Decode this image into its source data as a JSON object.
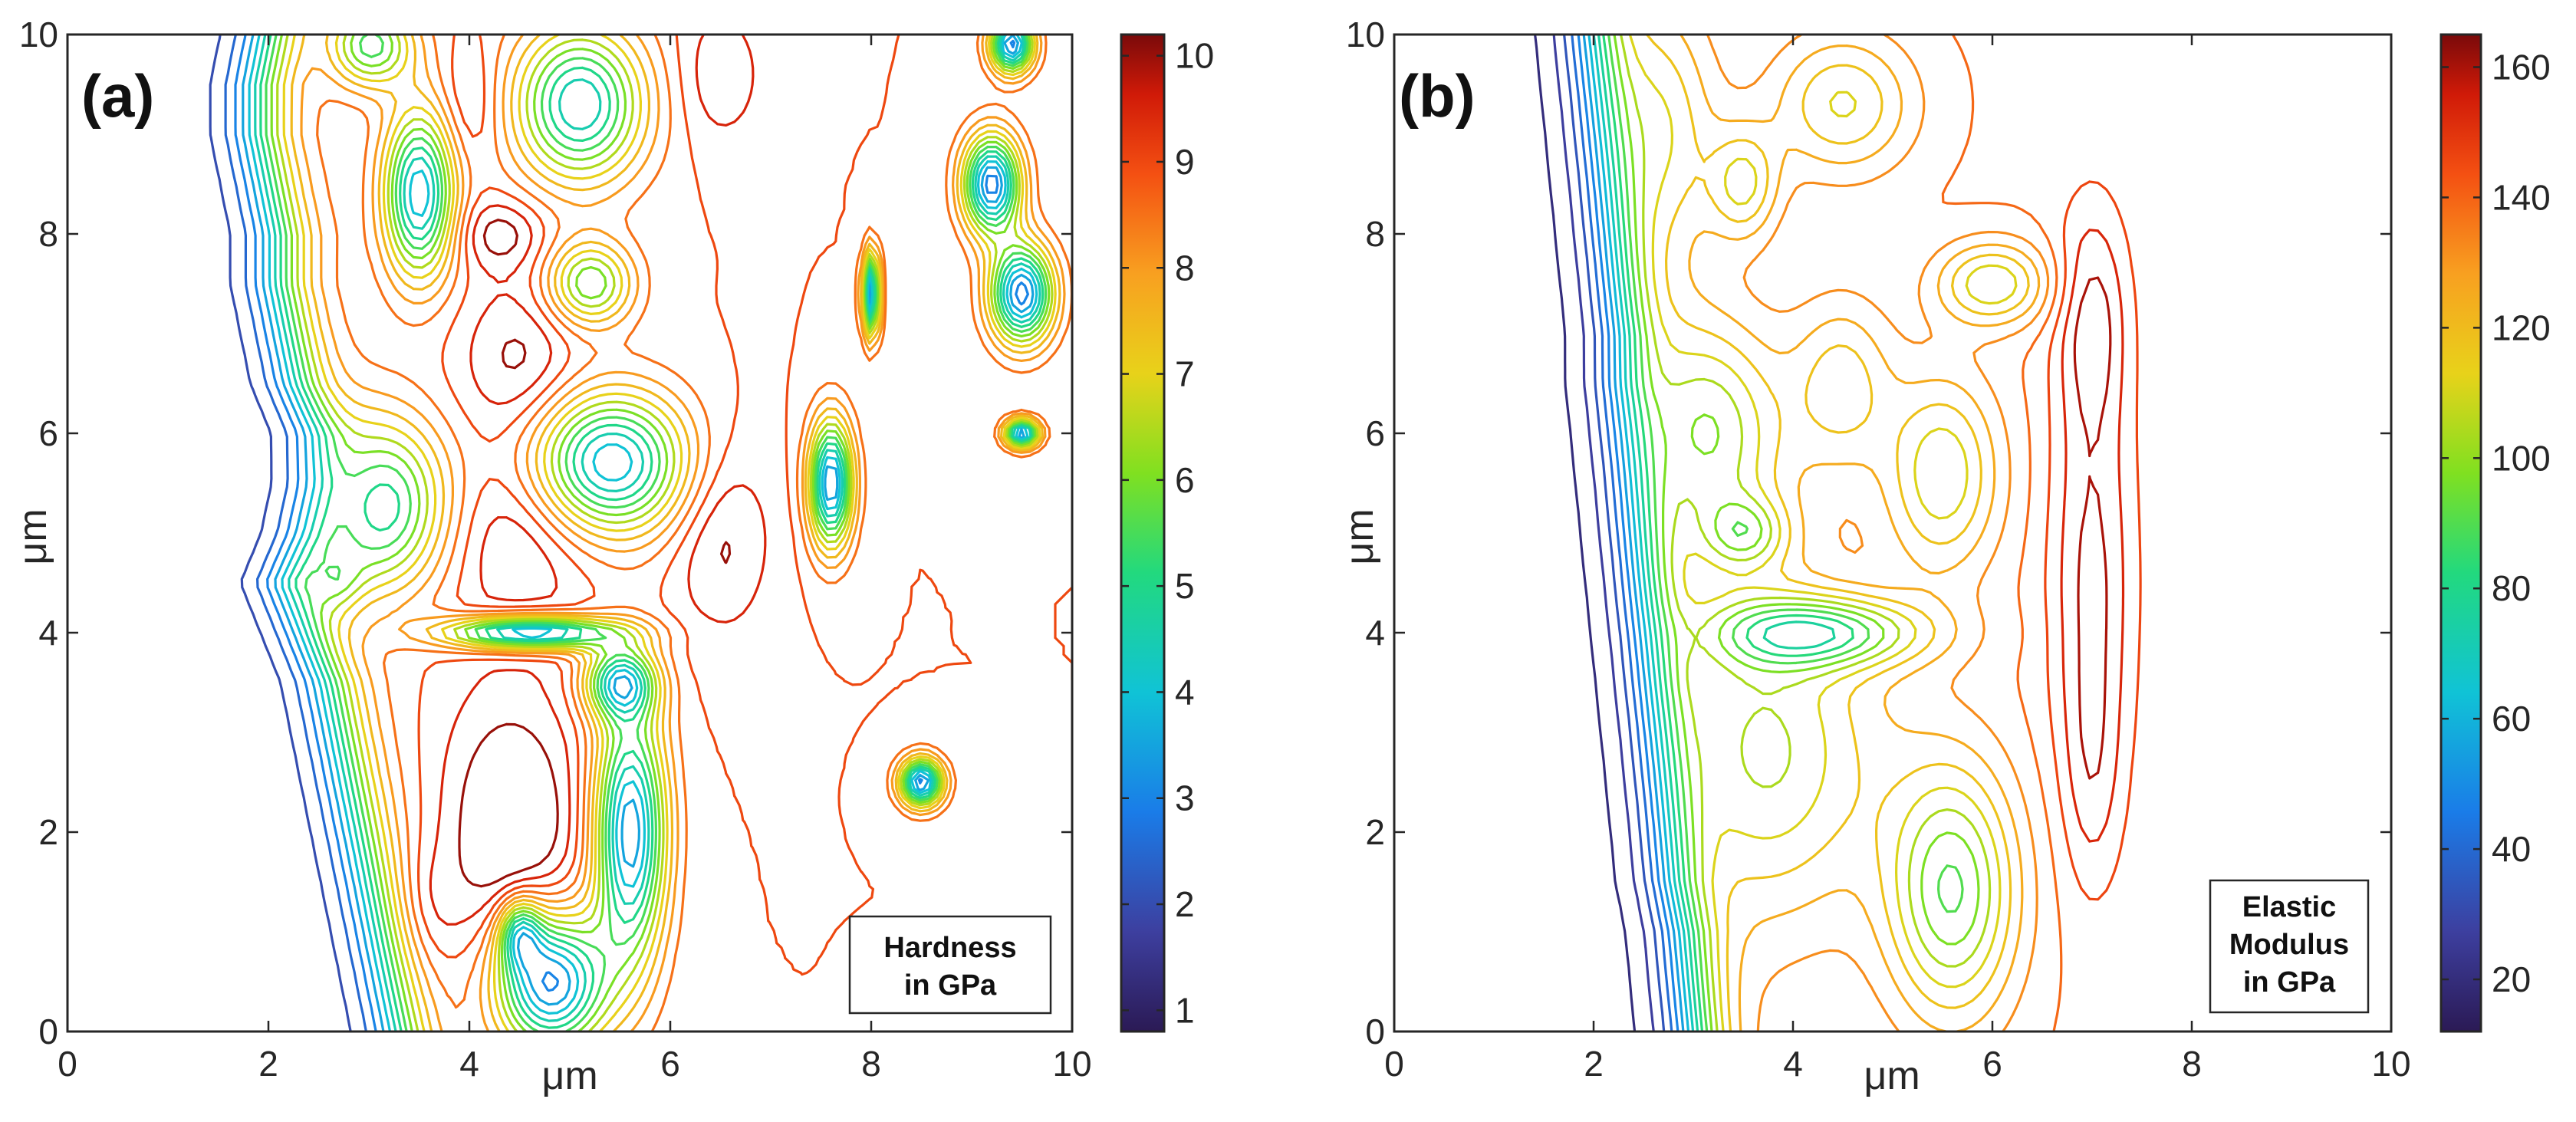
{
  "chart_data": [
    {
      "type": "contour",
      "panel_label": "(a)",
      "xlabel": "μm",
      "ylabel": "μm",
      "xlim": [
        0,
        10
      ],
      "ylim": [
        0,
        10
      ],
      "xticks": [
        "0",
        "2",
        "4",
        "6",
        "8",
        "10"
      ],
      "yticks": [
        "0",
        "2",
        "4",
        "6",
        "8",
        "10"
      ],
      "colorbar": {
        "min": 0.8,
        "max": 10.2,
        "ticks": [
          "1",
          "2",
          "3",
          "4",
          "5",
          "6",
          "7",
          "8",
          "9",
          "10"
        ]
      },
      "annotation": [
        "Hardness",
        "in GPa"
      ],
      "front": {
        "y": [
          0,
          0.5,
          1,
          1.5,
          2,
          2.5,
          3,
          3.5,
          4,
          4.5,
          5,
          5.5,
          6,
          6.5,
          7,
          7.5,
          8,
          8.5,
          9,
          9.5,
          10
        ],
        "x": [
          2.8,
          2.7,
          2.6,
          2.5,
          2.4,
          2.3,
          2.2,
          2.1,
          1.9,
          1.7,
          1.9,
          2.0,
          2.0,
          1.8,
          1.7,
          1.6,
          1.6,
          1.5,
          1.4,
          1.4,
          1.5
        ]
      },
      "plateau_end": 7.2,
      "bulk_value": 9.0,
      "substrate_value": 1.5,
      "levels": [
        1,
        1.5,
        2,
        2.5,
        3,
        3.5,
        4,
        4.5,
        5,
        5.5,
        6,
        6.5,
        7,
        7.5,
        8,
        8.5,
        9,
        9.5,
        10
      ],
      "features": [
        {
          "x": 4.4,
          "y": 2.0,
          "sx": 0.5,
          "sy": 1.0,
          "a": 1.8
        },
        {
          "x": 3.5,
          "y": 1.2,
          "sx": 0.25,
          "sy": 0.45,
          "a": 1.2
        },
        {
          "x": 4.5,
          "y": 5.0,
          "sx": 0.5,
          "sy": 0.6,
          "a": 1.2
        },
        {
          "x": 4.5,
          "y": 6.7,
          "sx": 0.4,
          "sy": 0.55,
          "a": 1.2
        },
        {
          "x": 4.3,
          "y": 8.0,
          "sx": 0.3,
          "sy": 0.25,
          "a": 1.3
        },
        {
          "x": 6.5,
          "y": 5.0,
          "sx": 0.35,
          "sy": 0.7,
          "a": 1.2
        },
        {
          "x": 4.0,
          "y": 9.3,
          "sx": 0.2,
          "sy": 0.45,
          "a": 0.8
        },
        {
          "x": 6.5,
          "y": 9.6,
          "sx": 0.3,
          "sy": 0.5,
          "a": 0.9
        },
        {
          "x": 5.4,
          "y": 5.7,
          "sx": 0.55,
          "sy": 0.5,
          "a": -5.5
        },
        {
          "x": 4.6,
          "y": 4.0,
          "sx": 0.6,
          "sy": 0.12,
          "a": -6.0
        },
        {
          "x": 5.1,
          "y": 9.3,
          "sx": 0.45,
          "sy": 0.55,
          "a": -5.0
        },
        {
          "x": 3.5,
          "y": 8.4,
          "sx": 0.25,
          "sy": 0.6,
          "a": -5.5
        },
        {
          "x": 3.0,
          "y": 5.3,
          "sx": 0.5,
          "sy": 0.6,
          "a": -5.5
        },
        {
          "x": 5.6,
          "y": 2.0,
          "sx": 0.25,
          "sy": 0.9,
          "a": -6.0
        },
        {
          "x": 4.8,
          "y": 0.5,
          "sx": 0.4,
          "sy": 0.5,
          "a": -6.5
        },
        {
          "x": 5.5,
          "y": 3.5,
          "sx": 0.25,
          "sy": 0.25,
          "a": -4.5
        },
        {
          "x": 3.0,
          "y": 9.9,
          "sx": 0.3,
          "sy": 0.3,
          "a": -4.0
        },
        {
          "x": 2.6,
          "y": 4.5,
          "sx": 0.2,
          "sy": 0.25,
          "a": -3.0
        },
        {
          "x": 4.5,
          "y": 1.0,
          "sx": 0.15,
          "sy": 0.25,
          "a": -3.5
        },
        {
          "x": 5.2,
          "y": 7.5,
          "sx": 0.3,
          "sy": 0.3,
          "a": -3.5
        },
        {
          "x": 9.2,
          "y": 8.5,
          "sx": 0.2,
          "sy": 0.35,
          "a": -6.3
        },
        {
          "x": 9.5,
          "y": 7.4,
          "sx": 0.22,
          "sy": 0.35,
          "a": -6.3
        },
        {
          "x": 8.0,
          "y": 7.4,
          "sx": 0.06,
          "sy": 0.3,
          "a": -6.2
        },
        {
          "x": 9.4,
          "y": 9.9,
          "sx": 0.15,
          "sy": 0.2,
          "a": -6.2
        },
        {
          "x": 8.5,
          "y": 2.5,
          "sx": 0.15,
          "sy": 0.17,
          "a": -6.2
        },
        {
          "x": 9.5,
          "y": 6.0,
          "sx": 0.12,
          "sy": 0.1,
          "a": -6.2
        },
        {
          "x": 7.6,
          "y": 5.5,
          "sx": 0.15,
          "sy": 0.45,
          "a": -6.1
        }
      ]
    },
    {
      "type": "contour",
      "panel_label": "(b)",
      "xlabel": "μm",
      "ylabel": "μm",
      "xlim": [
        0,
        10
      ],
      "ylim": [
        0,
        10
      ],
      "xticks": [
        "0",
        "2",
        "4",
        "6",
        "8",
        "10"
      ],
      "yticks": [
        "0",
        "2",
        "4",
        "6",
        "8",
        "10"
      ],
      "colorbar": {
        "min": 12,
        "max": 165,
        "ticks": [
          "20",
          "40",
          "60",
          "80",
          "100",
          "120",
          "140",
          "160"
        ]
      },
      "annotation": [
        "Elastic",
        "Modulus",
        "in GPa"
      ],
      "front": {
        "y": [
          0,
          0.5,
          1,
          1.5,
          2,
          2.5,
          3,
          3.5,
          4,
          4.5,
          5,
          5.5,
          6,
          6.5,
          7,
          7.5,
          8,
          8.5,
          9,
          9.5,
          10
        ],
        "x": [
          2.5,
          2.45,
          2.4,
          2.3,
          2.25,
          2.2,
          2.15,
          2.1,
          2.05,
          2.0,
          1.95,
          1.9,
          1.85,
          1.8,
          1.8,
          1.75,
          1.7,
          1.65,
          1.6,
          1.55,
          1.5
        ]
      },
      "plateau_end": 6.8,
      "bulk_value": 140,
      "substrate_value": 15,
      "levels": [
        20,
        27,
        34,
        41,
        48,
        55,
        62,
        69,
        76,
        83,
        90,
        97,
        104,
        111,
        118,
        125,
        132,
        139,
        146,
        153,
        160
      ],
      "features": [
        {
          "x": 7.0,
          "y": 4.5,
          "sx": 0.3,
          "sy": 1.6,
          "a": 22
        },
        {
          "x": 7.0,
          "y": 7.2,
          "sx": 0.25,
          "sy": 0.8,
          "a": 20
        },
        {
          "x": 7.0,
          "y": 2.5,
          "sx": 0.2,
          "sy": 0.8,
          "a": 10
        },
        {
          "x": 9.4,
          "y": 6.0,
          "sx": 0.25,
          "sy": 0.3,
          "a": 6
        },
        {
          "x": 3.0,
          "y": 6.0,
          "sx": 0.6,
          "sy": 0.8,
          "a": -50
        },
        {
          "x": 4.2,
          "y": 4.0,
          "sx": 0.8,
          "sy": 0.25,
          "a": -50
        },
        {
          "x": 3.6,
          "y": 2.8,
          "sx": 0.9,
          "sy": 1.2,
          "a": -40
        },
        {
          "x": 5.6,
          "y": 1.4,
          "sx": 0.45,
          "sy": 0.9,
          "a": -50
        },
        {
          "x": 5.5,
          "y": 5.6,
          "sx": 0.4,
          "sy": 0.7,
          "a": -35
        },
        {
          "x": 6.0,
          "y": 7.5,
          "sx": 0.4,
          "sy": 0.3,
          "a": -35
        },
        {
          "x": 3.5,
          "y": 8.5,
          "sx": 0.25,
          "sy": 0.4,
          "a": -30
        },
        {
          "x": 4.5,
          "y": 9.3,
          "sx": 0.5,
          "sy": 0.5,
          "a": -30
        },
        {
          "x": 3.5,
          "y": 5.0,
          "sx": 0.3,
          "sy": 0.25,
          "a": -30
        },
        {
          "x": 4.5,
          "y": 6.5,
          "sx": 0.35,
          "sy": 0.6,
          "a": -25
        },
        {
          "x": 2.6,
          "y": 9.0,
          "sx": 0.4,
          "sy": 0.9,
          "a": -35
        }
      ]
    }
  ]
}
